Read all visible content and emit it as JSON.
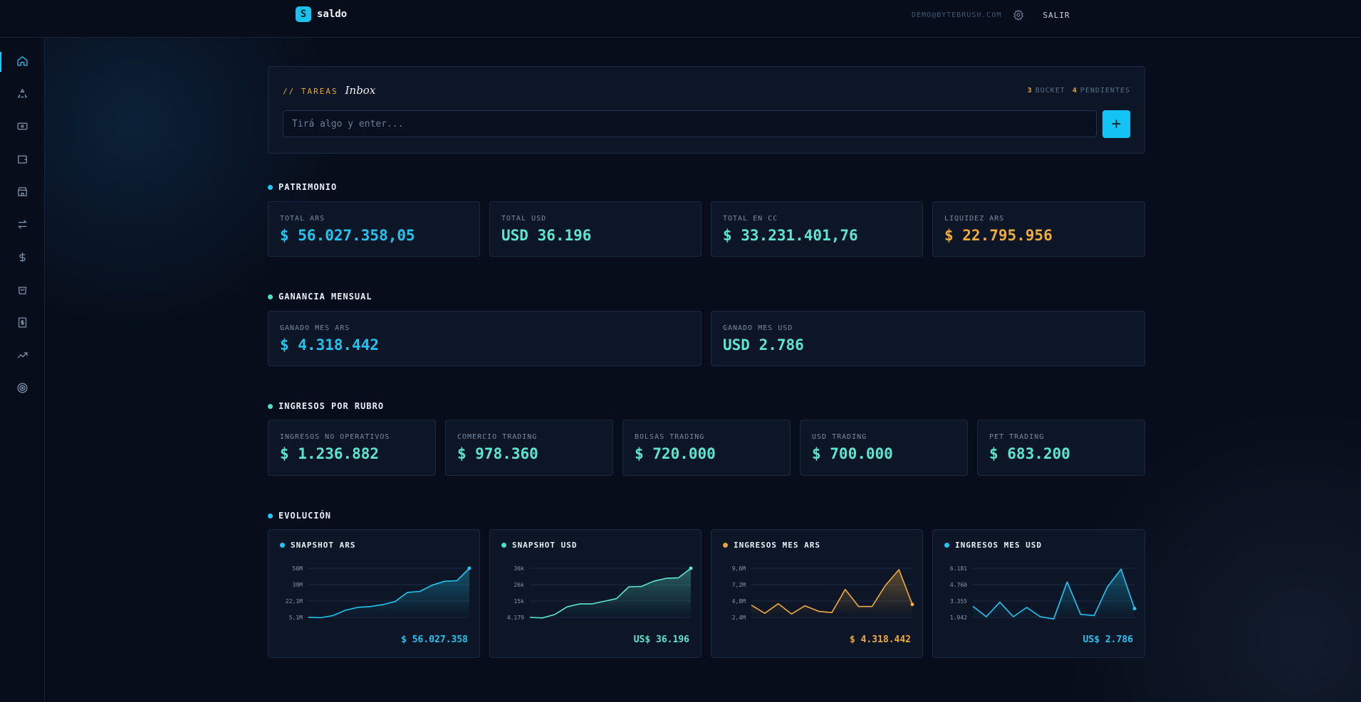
{
  "brand": {
    "logo_letter": "S",
    "name": "saldo"
  },
  "header": {
    "email": "DEMO@BYTEBRUSH.COM",
    "logout_label": "SALIR"
  },
  "sidebar": {
    "items": [
      {
        "icon": "home-icon",
        "active": true
      },
      {
        "icon": "recycle-icon"
      },
      {
        "icon": "banknote-icon"
      },
      {
        "icon": "wallet-icon"
      },
      {
        "icon": "store-icon"
      },
      {
        "icon": "transfer-icon"
      },
      {
        "icon": "dollar-icon"
      },
      {
        "icon": "shopping-bag-icon"
      },
      {
        "icon": "receipt-icon"
      },
      {
        "icon": "trending-up-icon"
      },
      {
        "icon": "target-icon"
      }
    ]
  },
  "inbox": {
    "tag": "// TAREAS",
    "title": "Inbox",
    "bucket_count": "3",
    "bucket_label": "BUCKET",
    "pending_count": "4",
    "pending_label": "PENDIENTES",
    "input_placeholder": "Tirá algo y enter...",
    "add_label": "+"
  },
  "patrimonio": {
    "title": "PATRIMONIO",
    "cards": [
      {
        "label": "TOTAL ARS",
        "value": "$ 56.027.358,05",
        "color": "#22c4f0"
      },
      {
        "label": "TOTAL USD",
        "value": "USD 36.196",
        "color": "#5ce6cf"
      },
      {
        "label": "TOTAL EN CC",
        "value": "$ 33.231.401,76",
        "color": "#5ce6cf"
      },
      {
        "label": "LIQUIDEZ ARS",
        "value": "$ 22.795.956",
        "color": "#f0ab3c"
      }
    ]
  },
  "ganancia": {
    "title": "GANANCIA MENSUAL",
    "cards": [
      {
        "label": "GANADO MES ARS",
        "value": "$ 4.318.442",
        "color": "#22c4f0"
      },
      {
        "label": "GANADO MES USD",
        "value": "USD 2.786",
        "color": "#5ce6cf"
      }
    ]
  },
  "ingresos": {
    "title": "INGRESOS POR RUBRO",
    "cards": [
      {
        "label": "INGRESOS NO OPERATIVOS",
        "value": "$ 1.236.882"
      },
      {
        "label": "COMERCIO TRADING",
        "value": "$ 978.360"
      },
      {
        "label": "BOLSAS TRADING",
        "value": "$ 720.000"
      },
      {
        "label": "USD TRADING",
        "value": "$ 700.000"
      },
      {
        "label": "PET TRADING",
        "value": "$ 683.200"
      }
    ]
  },
  "evolucion": {
    "title": "EVOLUCIÓN"
  },
  "chart_data": [
    {
      "type": "area",
      "title": "SNAPSHOT ARS",
      "color": "#22c4f0",
      "yticks": [
        "56M",
        "39M",
        "22,1M",
        "5,1M"
      ],
      "ylim": [
        5.1,
        56
      ],
      "values": [
        5.2,
        4.7,
        7,
        12.5,
        15.5,
        16.3,
        18.3,
        21.5,
        31,
        32,
        38.5,
        42.5,
        43.2,
        56
      ],
      "total": "$ 56.027.358"
    },
    {
      "type": "area",
      "title": "SNAPSHOT USD",
      "color": "#5ce6cf",
      "yticks": [
        "36k",
        "26k",
        "15k",
        "4.179"
      ],
      "ylim": [
        4.179,
        36
      ],
      "values": [
        4.2,
        3.8,
        6,
        11,
        12.9,
        12.9,
        14.6,
        16.3,
        24,
        24.2,
        27.6,
        29.5,
        29.8,
        36
      ],
      "total": "US$ 36.196"
    },
    {
      "type": "line",
      "title": "INGRESOS MES ARS",
      "color": "#f0ab3c",
      "yticks": [
        "9,6M",
        "7,2M",
        "4,8M",
        "2,4M"
      ],
      "ylim": [
        2.4,
        9.6
      ],
      "values": [
        4.2,
        3,
        4.4,
        2.9,
        4.1,
        3.3,
        3.1,
        6.5,
        4,
        4,
        7.1,
        9.4,
        4.3
      ],
      "total": "$ 4.318.442"
    },
    {
      "type": "line",
      "title": "INGRESOS MES USD",
      "color": "#22c4f0",
      "yticks": [
        "6.181",
        "4.760",
        "3.355",
        "1.942"
      ],
      "ylim": [
        1.942,
        6.181
      ],
      "values": [
        2.9,
        2,
        3.25,
        2,
        2.8,
        2,
        1.8,
        5,
        2.2,
        2.1,
        4.6,
        6.1,
        2.7
      ],
      "total": "US$ 2.786"
    }
  ]
}
